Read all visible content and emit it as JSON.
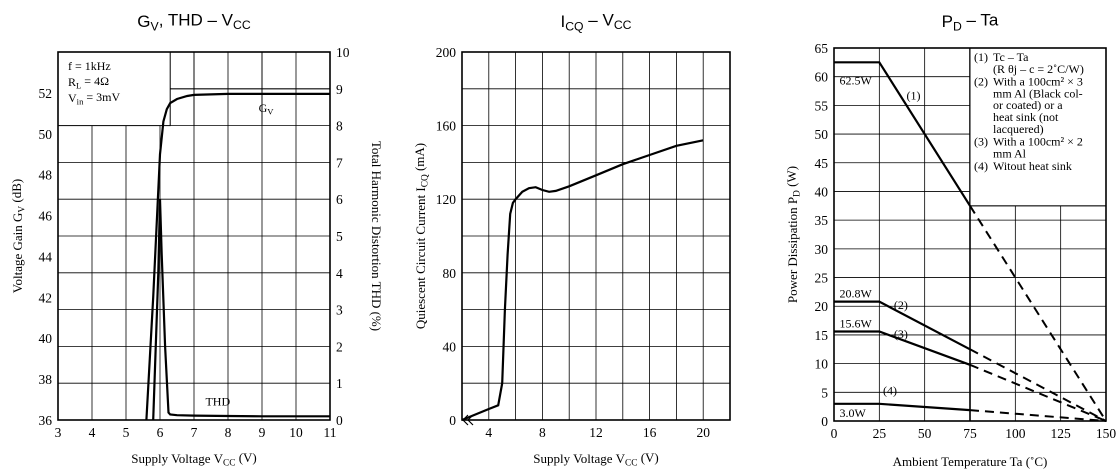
{
  "chart_data": [
    {
      "type": "line",
      "title": "G_V, THD – V_CC",
      "title_main": "G",
      "title_sub1": "V",
      "title_mid": ", THD – V",
      "title_sub2": "CC",
      "xlabel": "Supply Voltage V_CC (V)",
      "xlabel_main": "Supply Voltage V",
      "xlabel_sub": "CC",
      "xlabel_end": " (V)",
      "ylabel": "Voltage Gain G_V (dB)",
      "ylabel_main": "Voltage Gain G",
      "ylabel_sub": "V",
      "ylabel_end": " (dB)",
      "y2label": "Total Harmonic Distortion THD (%)",
      "xlim": [
        3,
        11
      ],
      "ylim": [
        36,
        54
      ],
      "y2lim": [
        0,
        10
      ],
      "xticks": [
        "3",
        "4",
        "5",
        "6",
        "7",
        "8",
        "9",
        "10",
        "11"
      ],
      "yticks": [
        "36",
        "38",
        "40",
        "42",
        "44",
        "46",
        "48",
        "50",
        "52"
      ],
      "y2ticks": [
        "0",
        "1",
        "2",
        "3",
        "4",
        "5",
        "6",
        "7",
        "8",
        "9",
        "10"
      ],
      "conditions": {
        "f": "f = 1kHz",
        "rl_main": "R",
        "rl_sub": "L",
        "rl_end": " = 4Ω",
        "vin_main": "V",
        "vin_sub": "in",
        "vin_end": " = 3mV"
      },
      "series": [
        {
          "name": "G_V",
          "label_main": "G",
          "label_sub": "V",
          "axis": "left",
          "x": [
            5.6,
            5.7,
            5.8,
            5.9,
            6.0,
            6.1,
            6.2,
            6.3,
            6.5,
            6.8,
            7.0,
            8.0,
            9.0,
            10.0,
            11.0
          ],
          "y": [
            36,
            39,
            42,
            45.5,
            49,
            50.6,
            51.2,
            51.5,
            51.7,
            51.85,
            51.9,
            51.95,
            51.95,
            51.95,
            51.95
          ]
        },
        {
          "name": "THD",
          "label": "THD",
          "axis": "right",
          "x": [
            5.8,
            5.95,
            6.0,
            6.05,
            6.15,
            6.25,
            6.3,
            6.5,
            7.0,
            8.0,
            9.0,
            10.0,
            11.0
          ],
          "y": [
            0.0,
            4.0,
            6.0,
            4.5,
            2.0,
            0.2,
            0.15,
            0.13,
            0.12,
            0.11,
            0.1,
            0.1,
            0.1
          ]
        }
      ]
    },
    {
      "type": "line",
      "title": "I_CQ – V_CC",
      "title_main": "I",
      "title_sub1": "CQ",
      "title_mid": " – V",
      "title_sub2": "CC",
      "xlabel": "Supply Voltage V_CC (V)",
      "xlabel_main": "Supply Voltage V",
      "xlabel_sub": "CC",
      "xlabel_end": " (V)",
      "ylabel": "Quiescent Circuit Current I_CQ (mA)",
      "ylabel_main": "Quiescent Circuit Current I",
      "ylabel_sub": "CQ",
      "ylabel_end": " (mA)",
      "xlim": [
        2,
        22
      ],
      "ylim": [
        0,
        200
      ],
      "xticks": [
        "4",
        "8",
        "12",
        "16",
        "20"
      ],
      "yticks": [
        "0",
        "40",
        "80",
        "120",
        "160",
        "200"
      ],
      "series": [
        {
          "name": "I_CQ",
          "x": [
            2.0,
            3.0,
            4.0,
            4.7,
            5.0,
            5.2,
            5.4,
            5.6,
            5.8,
            6.0,
            6.5,
            7.0,
            7.5,
            8.0,
            8.5,
            9.0,
            10.0,
            12.0,
            14.0,
            16.0,
            18.0,
            20.0
          ],
          "y": [
            0,
            3,
            6,
            8,
            20,
            60,
            90,
            112,
            118,
            120,
            124,
            126,
            126.5,
            125,
            124,
            124.5,
            127,
            133,
            139,
            144,
            149,
            152
          ]
        }
      ]
    },
    {
      "type": "line",
      "title": "P_D – Ta",
      "title_main": "P",
      "title_sub1": "D",
      "title_mid": " – Ta",
      "xlabel": "Ambient Temperature Ta (˚C)",
      "ylabel": "Power Dissipation P_D (W)",
      "ylabel_main": "Power Dissipation P",
      "ylabel_sub": "D",
      "ylabel_end": " (W)",
      "xlim": [
        0,
        150
      ],
      "ylim": [
        0,
        65
      ],
      "xticks": [
        "0",
        "25",
        "50",
        "75",
        "100",
        "125",
        "150"
      ],
      "yticks": [
        "0",
        "5",
        "10",
        "15",
        "20",
        "25",
        "30",
        "35",
        "40",
        "45",
        "50",
        "55",
        "60",
        "65"
      ],
      "legend": [
        {
          "num": "(1)",
          "lines": [
            "Tc – Ta",
            "(R θj – c = 2˚C/W)"
          ]
        },
        {
          "num": "(2)",
          "lines": [
            "With a 100cm² × 3",
            "mm Al (Black col-",
            "or coated) or a",
            "heat sink (not",
            "lacquered)"
          ]
        },
        {
          "num": "(3)",
          "lines": [
            "With a 100cm² × 2",
            "mm Al"
          ]
        },
        {
          "num": "(4)",
          "lines": [
            "Witout heat sink"
          ]
        }
      ],
      "series": [
        {
          "name": "(1)",
          "value_label": "62.5W",
          "solid": {
            "x": [
              0,
              25,
              75
            ],
            "y": [
              62.5,
              62.5,
              37.5
            ]
          },
          "dashed": {
            "x": [
              75,
              150
            ],
            "y": [
              37.5,
              0
            ]
          }
        },
        {
          "name": "(2)",
          "value_label": "20.8W",
          "solid": {
            "x": [
              0,
              25,
              75
            ],
            "y": [
              20.8,
              20.8,
              12.5
            ]
          },
          "dashed": {
            "x": [
              75,
              150
            ],
            "y": [
              12.5,
              0
            ]
          }
        },
        {
          "name": "(3)",
          "value_label": "15.6W",
          "solid": {
            "x": [
              0,
              25,
              75
            ],
            "y": [
              15.6,
              15.6,
              9.8
            ]
          },
          "dashed": {
            "x": [
              75,
              150
            ],
            "y": [
              9.8,
              0
            ]
          }
        },
        {
          "name": "(4)",
          "value_label": "3.0W",
          "solid": {
            "x": [
              0,
              25,
              75
            ],
            "y": [
              3.0,
              3.0,
              1.9
            ]
          },
          "dashed": {
            "x": [
              75,
              150
            ],
            "y": [
              1.9,
              0
            ]
          }
        }
      ]
    }
  ]
}
